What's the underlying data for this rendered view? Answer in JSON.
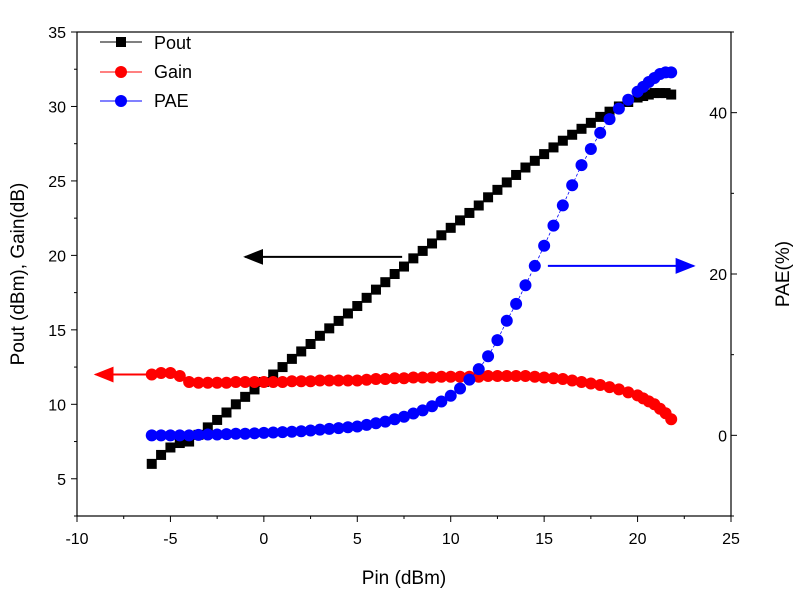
{
  "chart_data": {
    "type": "scatter",
    "xlabel": "Pin (dBm)",
    "ylabel": "Pout (dBm), Gain(dB)",
    "y2label": "PAE(%)",
    "xlim": [
      -10,
      25
    ],
    "ylim": [
      2.5,
      35
    ],
    "y2lim": [
      -10,
      50
    ],
    "xticks": [
      -10,
      -5,
      0,
      5,
      10,
      15,
      20,
      25
    ],
    "yticks": [
      5,
      10,
      15,
      20,
      25,
      30,
      35
    ],
    "y2ticks": [
      0,
      20,
      40
    ],
    "grid": false,
    "legend_placement": "top-left",
    "x": [
      -6,
      -5.5,
      -5,
      -4.5,
      -4,
      -3.5,
      -3,
      -2.5,
      -2,
      -1.5,
      -1,
      -0.5,
      0,
      0.5,
      1,
      1.5,
      2,
      2.5,
      3,
      3.5,
      4,
      4.5,
      5,
      5.5,
      6,
      6.5,
      7,
      7.5,
      8,
      8.5,
      9,
      9.5,
      10,
      10.5,
      11,
      11.5,
      12,
      12.5,
      13,
      13.5,
      14,
      14.5,
      15,
      15.5,
      16,
      16.5,
      17,
      17.5,
      18,
      18.5,
      19,
      19.5,
      20,
      20.3,
      20.6,
      20.9,
      21.2,
      21.5,
      21.8
    ],
    "series": [
      {
        "name": "Pout",
        "axis": "left",
        "marker": "square",
        "color": "#000000",
        "values": [
          6.0,
          6.6,
          7.1,
          7.4,
          7.5,
          7.95,
          8.45,
          8.95,
          9.45,
          10.0,
          10.5,
          11.0,
          11.5,
          12.0,
          12.5,
          13.05,
          13.55,
          14.05,
          14.6,
          15.1,
          15.6,
          16.1,
          16.6,
          17.15,
          17.7,
          18.2,
          18.75,
          19.25,
          19.8,
          20.3,
          20.8,
          21.35,
          21.85,
          22.35,
          22.85,
          23.35,
          23.9,
          24.4,
          24.9,
          25.4,
          25.9,
          26.35,
          26.8,
          27.25,
          27.7,
          28.1,
          28.5,
          28.9,
          29.3,
          29.65,
          30.0,
          30.3,
          30.6,
          30.7,
          30.8,
          30.9,
          30.9,
          30.9,
          30.8
        ]
      },
      {
        "name": "Gain",
        "axis": "left",
        "marker": "circle",
        "color": "#ff0000",
        "values": [
          12.0,
          12.1,
          12.1,
          11.9,
          11.5,
          11.45,
          11.45,
          11.45,
          11.45,
          11.5,
          11.5,
          11.5,
          11.5,
          11.5,
          11.5,
          11.55,
          11.55,
          11.55,
          11.6,
          11.6,
          11.6,
          11.6,
          11.6,
          11.65,
          11.7,
          11.7,
          11.75,
          11.75,
          11.8,
          11.8,
          11.8,
          11.85,
          11.85,
          11.85,
          11.85,
          11.85,
          11.9,
          11.9,
          11.9,
          11.9,
          11.9,
          11.85,
          11.8,
          11.75,
          11.7,
          11.6,
          11.5,
          11.4,
          11.3,
          11.15,
          11.0,
          10.8,
          10.6,
          10.4,
          10.2,
          10.0,
          9.7,
          9.4,
          9.0
        ]
      },
      {
        "name": "PAE",
        "axis": "right",
        "marker": "circle",
        "color": "#0000ff",
        "values": [
          0,
          0,
          0,
          0,
          0,
          0.05,
          0.1,
          0.1,
          0.15,
          0.2,
          0.2,
          0.25,
          0.3,
          0.35,
          0.4,
          0.45,
          0.5,
          0.6,
          0.7,
          0.8,
          0.9,
          1.0,
          1.1,
          1.3,
          1.5,
          1.7,
          2.0,
          2.3,
          2.7,
          3.1,
          3.6,
          4.2,
          4.9,
          5.8,
          6.9,
          8.2,
          9.8,
          11.8,
          14.2,
          16.3,
          18.6,
          21.0,
          23.5,
          26.0,
          28.5,
          31.0,
          33.5,
          35.5,
          37.5,
          39.2,
          40.5,
          41.6,
          42.6,
          43.2,
          43.8,
          44.3,
          44.8,
          45.0,
          45.0
        ]
      }
    ],
    "annotations": [
      {
        "type": "arrow",
        "axis": "left",
        "color": "#000000",
        "from": [
          7.4,
          19.9
        ],
        "to": [
          -1.0,
          19.9
        ]
      },
      {
        "type": "arrow",
        "axis": "left",
        "color": "#ff0000",
        "from": [
          -6.3,
          12.0
        ],
        "to": [
          -9.0,
          12.0
        ]
      },
      {
        "type": "arrow",
        "axis": "right",
        "color": "#0000ff",
        "from": [
          15.2,
          21.0
        ],
        "to": [
          23.0,
          21.0
        ]
      }
    ]
  }
}
